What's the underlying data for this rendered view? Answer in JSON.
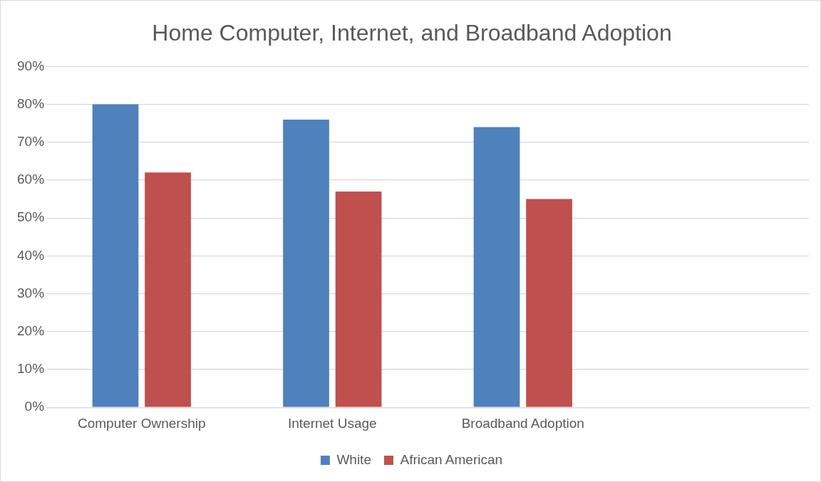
{
  "chart_data": {
    "type": "bar",
    "title": "Home Computer, Internet, and Broadband Adoption",
    "categories": [
      "Computer Ownership",
      "Internet Usage",
      "Broadband Adoption",
      null
    ],
    "series": [
      {
        "name": "White",
        "color": "#4f81bd",
        "values": [
          80,
          76,
          74,
          null
        ]
      },
      {
        "name": "African American",
        "color": "#c0504d",
        "values": [
          62,
          57,
          55,
          null
        ]
      }
    ],
    "ylim": [
      0,
      90
    ],
    "yticks": [
      {
        "value": 0,
        "label": "0%"
      },
      {
        "value": 10,
        "label": "10%"
      },
      {
        "value": 20,
        "label": "20%"
      },
      {
        "value": 30,
        "label": "30%"
      },
      {
        "value": 40,
        "label": "40%"
      },
      {
        "value": 50,
        "label": "50%"
      },
      {
        "value": 60,
        "label": "60%"
      },
      {
        "value": 70,
        "label": "70%"
      },
      {
        "value": 80,
        "label": "80%"
      },
      {
        "value": 90,
        "label": "90%"
      }
    ],
    "grid": "y",
    "legend": "bottom"
  }
}
